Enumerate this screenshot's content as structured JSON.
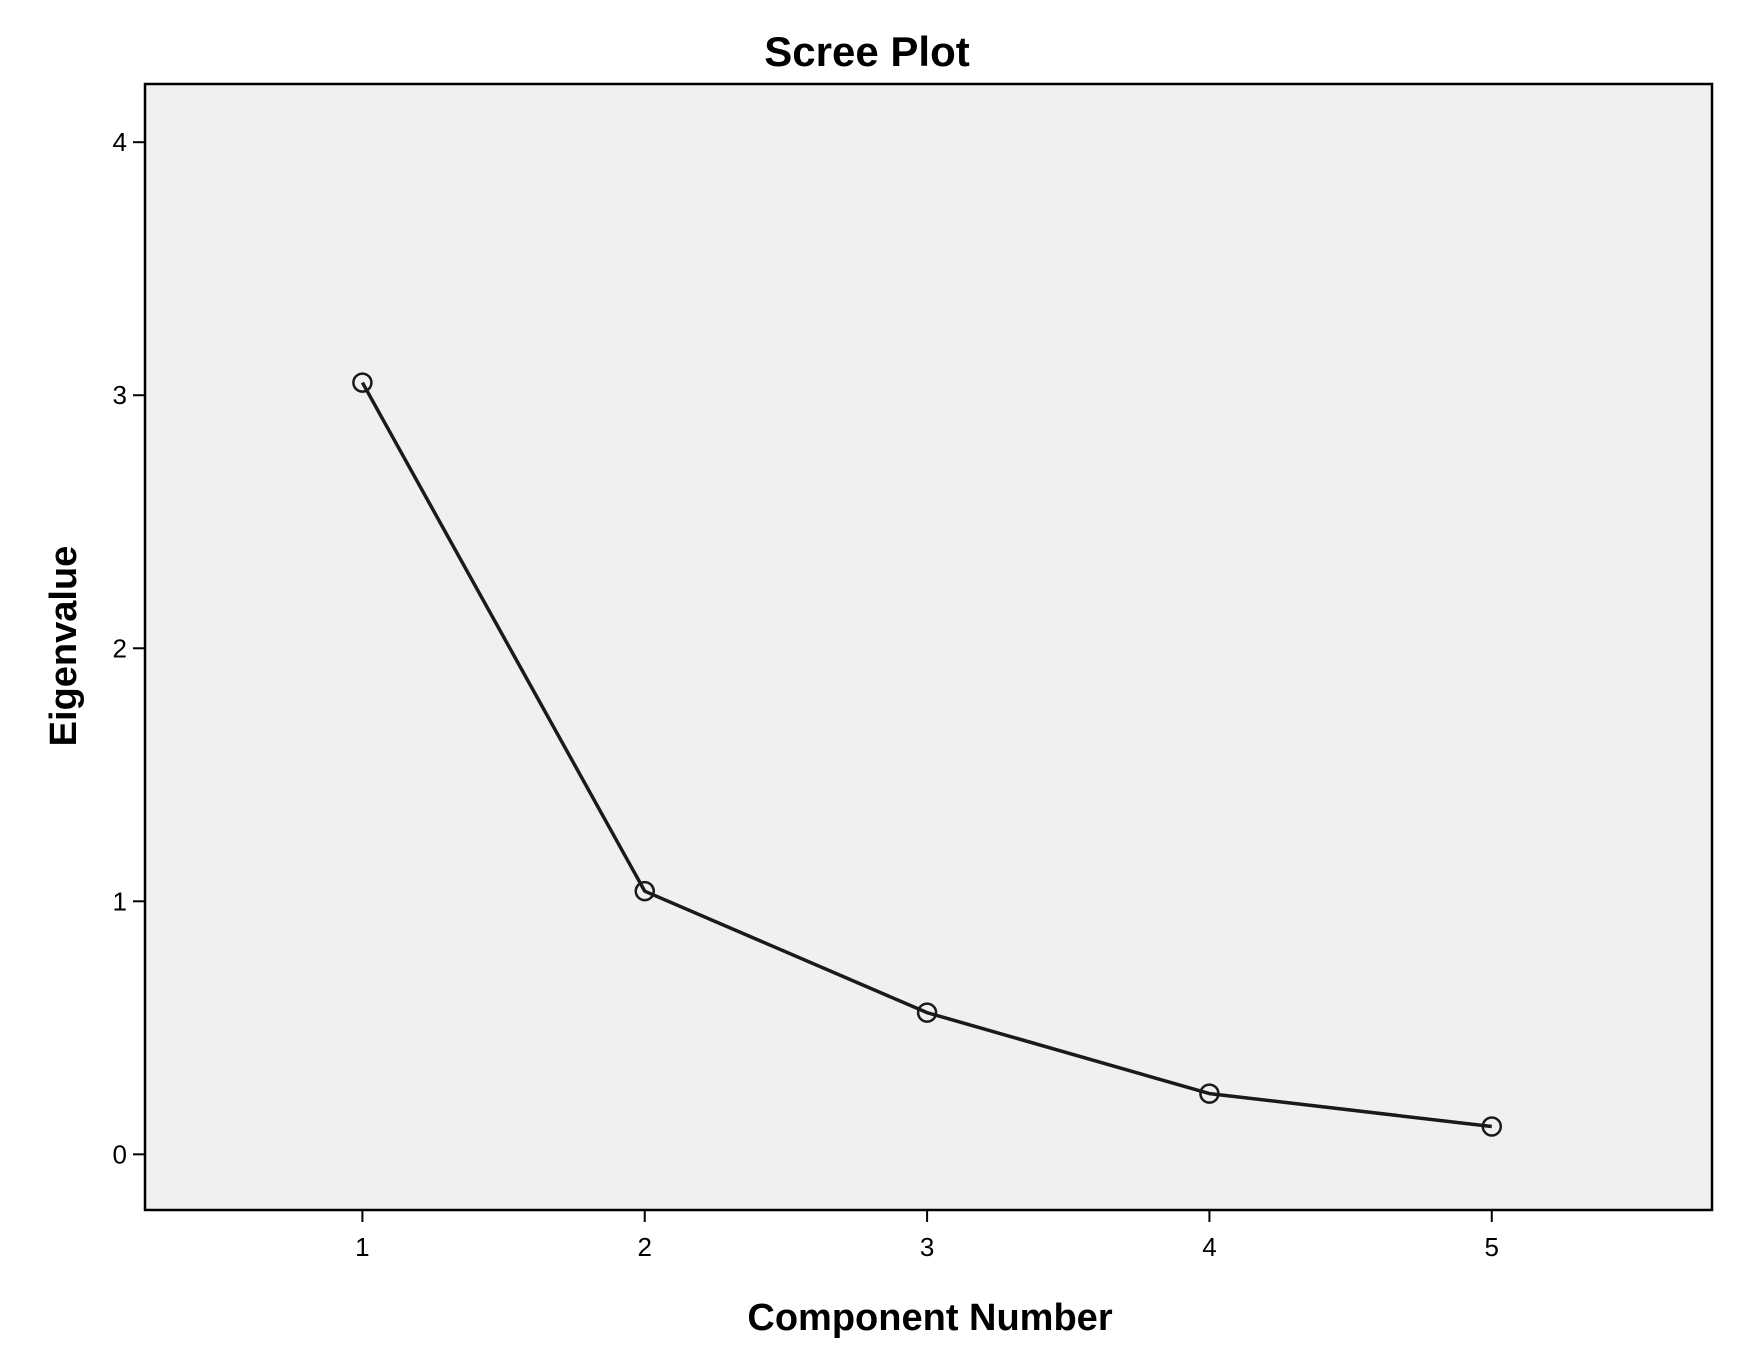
{
  "chart_data": {
    "type": "line",
    "title": "Scree Plot",
    "xlabel": "Component Number",
    "ylabel": "Eigenvalue",
    "x": [
      1,
      2,
      3,
      4,
      5
    ],
    "x_ticks": [
      "1",
      "2",
      "3",
      "4",
      "5"
    ],
    "y_ticks": [
      "0",
      "1",
      "2",
      "3",
      "4"
    ],
    "ylim": [
      -0.22,
      4.23
    ],
    "xlim": [
      0.23,
      5.78
    ],
    "series": [
      {
        "values": [
          3.05,
          1.04,
          0.56,
          0.24,
          0.11
        ]
      }
    ],
    "marker": "open-circle",
    "grid": false,
    "legend": "none",
    "colors": {
      "plot_background": "#f0f0f0",
      "line": "#1a1a1a",
      "frame": "#000000"
    }
  }
}
